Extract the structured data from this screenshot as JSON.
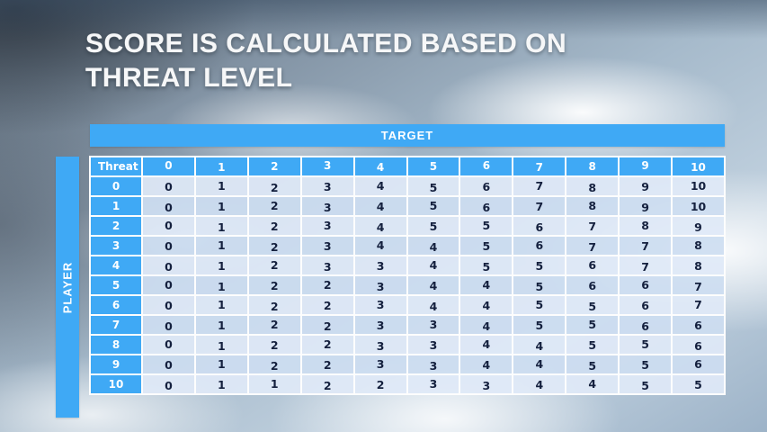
{
  "slide": {
    "title_line1": "SCORE IS CALCULATED BASED ON",
    "title_line2": "THREAT LEVEL"
  },
  "table": {
    "target_label": "TARGET",
    "player_label": "PLAYER",
    "corner_label": "Threat",
    "column_headers": [
      "0",
      "1",
      "2",
      "3",
      "4",
      "5",
      "6",
      "7",
      "8",
      "9",
      "10"
    ],
    "rows": [
      {
        "header": "0",
        "values": [
          0,
          1,
          2,
          3,
          4,
          5,
          6,
          7,
          8,
          9,
          10
        ]
      },
      {
        "header": "1",
        "values": [
          0,
          1,
          2,
          3,
          4,
          5,
          6,
          7,
          8,
          9,
          10
        ]
      },
      {
        "header": "2",
        "values": [
          0,
          1,
          2,
          3,
          4,
          5,
          5,
          6,
          7,
          8,
          9
        ]
      },
      {
        "header": "3",
        "values": [
          0,
          1,
          2,
          3,
          4,
          4,
          5,
          6,
          7,
          7,
          8
        ]
      },
      {
        "header": "4",
        "values": [
          0,
          1,
          2,
          3,
          3,
          4,
          5,
          5,
          6,
          7,
          8
        ]
      },
      {
        "header": "5",
        "values": [
          0,
          1,
          2,
          2,
          3,
          4,
          4,
          5,
          6,
          6,
          7
        ]
      },
      {
        "header": "6",
        "values": [
          0,
          1,
          2,
          2,
          3,
          4,
          4,
          5,
          5,
          6,
          7
        ]
      },
      {
        "header": "7",
        "values": [
          0,
          1,
          2,
          2,
          3,
          3,
          4,
          5,
          5,
          6,
          6
        ]
      },
      {
        "header": "8",
        "values": [
          0,
          1,
          2,
          2,
          3,
          3,
          4,
          4,
          5,
          5,
          6
        ]
      },
      {
        "header": "9",
        "values": [
          0,
          1,
          2,
          2,
          3,
          3,
          4,
          4,
          5,
          5,
          6
        ]
      },
      {
        "header": "10",
        "values": [
          0,
          1,
          1,
          2,
          2,
          3,
          3,
          4,
          4,
          5,
          5
        ]
      }
    ]
  },
  "colors": {
    "accent_blue": "#3fa9f5",
    "row_shade_a": "rgba(205,221,241,0.92)",
    "row_shade_b": "rgba(223,233,247,0.92)",
    "cell_text": "#14203e",
    "title_text": "#f6f7f8"
  }
}
